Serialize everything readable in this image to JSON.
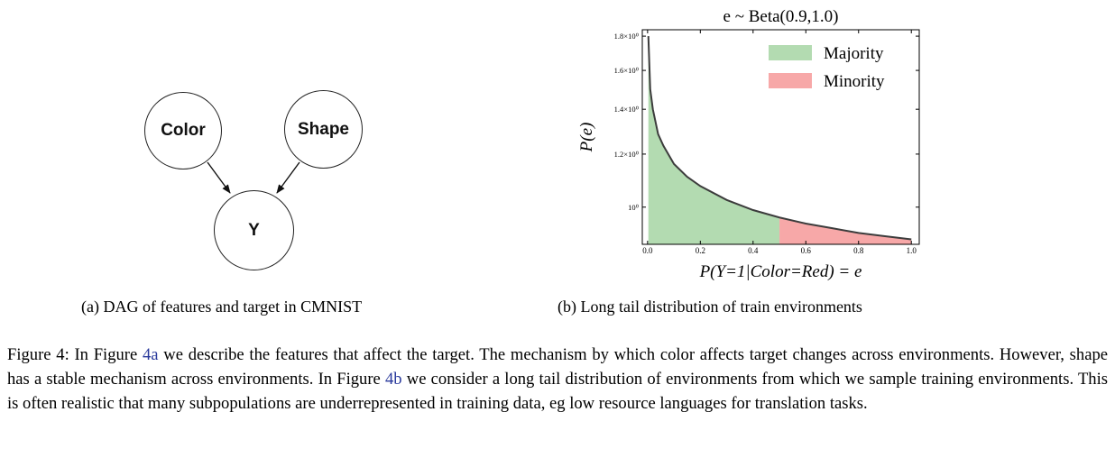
{
  "dag": {
    "nodes": [
      {
        "id": "color",
        "label": "Color"
      },
      {
        "id": "shape",
        "label": "Shape"
      },
      {
        "id": "y",
        "label": "Y"
      }
    ],
    "edges": [
      [
        "color",
        "y"
      ],
      [
        "shape",
        "y"
      ]
    ],
    "caption": "(a) DAG of features and target in CMNIST"
  },
  "chart_caption": "(b) Long tail distribution of train environments",
  "chart_data": {
    "type": "area",
    "title": "e ~ Beta(0.9,1.0)",
    "xlabel": "P(Y=1|Color=Red) = e",
    "ylabel": "P(e)",
    "xlim": [
      -0.02,
      1.03
    ],
    "y_scale": "log",
    "ylim": [
      0.88,
      1.84
    ],
    "x_ticks": [
      "0.0",
      "0.2",
      "0.4",
      "0.6",
      "0.8",
      "1.0"
    ],
    "y_ticks": [
      {
        "value": 1.0,
        "label": "10⁰"
      },
      {
        "value": 1.2,
        "label": "1.2×10⁰"
      },
      {
        "value": 1.4,
        "label": "1.4×10⁰"
      },
      {
        "value": 1.6,
        "label": "1.6×10⁰"
      },
      {
        "value": 1.8,
        "label": "1.8×10⁰"
      }
    ],
    "curve": {
      "x": [
        0.003,
        0.01,
        0.02,
        0.04,
        0.06,
        0.1,
        0.15,
        0.2,
        0.3,
        0.4,
        0.5,
        0.6,
        0.7,
        0.8,
        0.9,
        1.0
      ],
      "y": [
        1.8,
        1.5,
        1.4,
        1.285,
        1.235,
        1.16,
        1.11,
        1.075,
        1.025,
        0.99,
        0.965,
        0.945,
        0.93,
        0.915,
        0.905,
        0.895
      ]
    },
    "series": [
      {
        "name": "Majority",
        "range": [
          0.0,
          0.5
        ],
        "color": "#b3dbb1"
      },
      {
        "name": "Minority",
        "range": [
          0.5,
          1.0
        ],
        "color": "#f7a8a8"
      }
    ],
    "legend": "top-right",
    "line_color": "#3c3c3c"
  },
  "figure_caption": {
    "parts": [
      {
        "text": "Figure 4: In Figure "
      },
      {
        "text": "4a",
        "ref": true
      },
      {
        "text": " we describe the features that affect the target. The mechanism by which color affects target changes across environments. However, shape has a stable mechanism across environments. In Figure "
      },
      {
        "text": "4b",
        "ref": true
      },
      {
        "text": " we consider a long tail distribution of environments from which we sample training environments. This is often realistic that many subpopulations are underrepresented in training data, eg low resource languages for translation tasks."
      }
    ]
  }
}
